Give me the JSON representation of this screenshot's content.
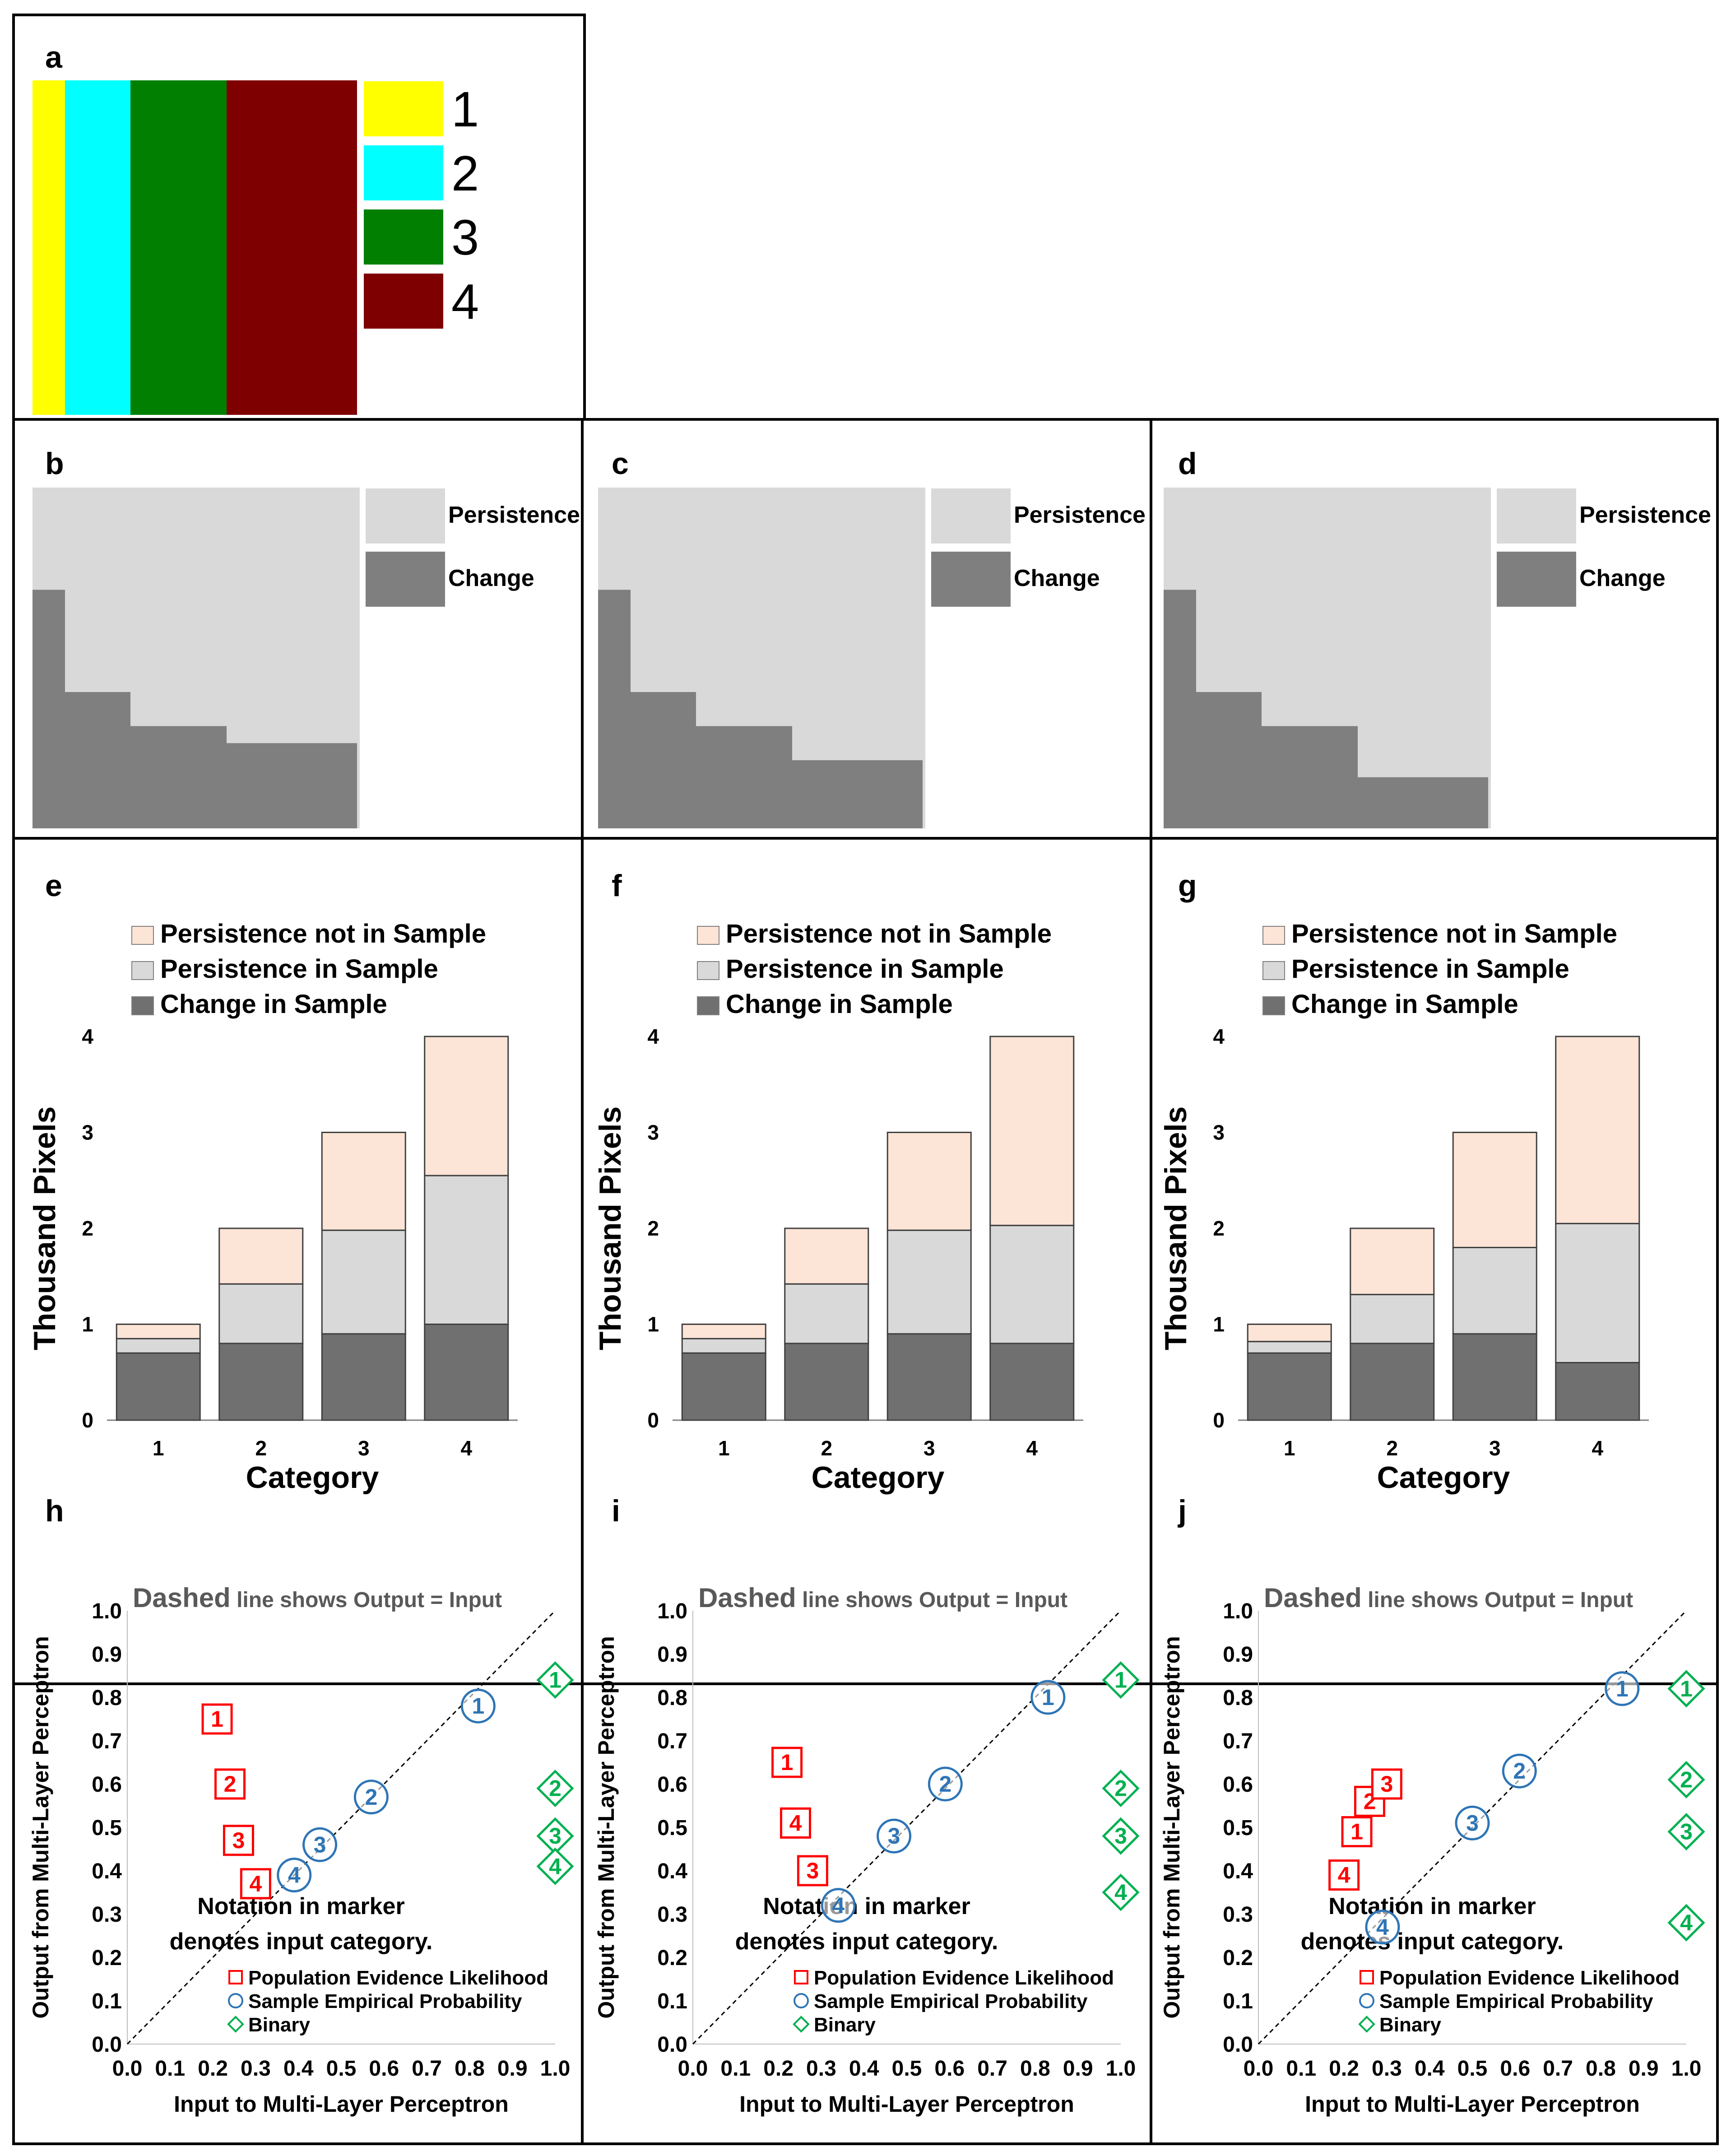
{
  "figure": {
    "panel_letters": [
      "a",
      "b",
      "c",
      "d",
      "e",
      "f",
      "g",
      "h",
      "i",
      "j"
    ]
  },
  "colors": {
    "cat1": "#FFFF00",
    "cat2": "#00FFFF",
    "cat3": "#007F00",
    "cat4": "#7F0000",
    "persistence": "#D9D9D9",
    "change": "#7F7F7F",
    "persistence_not_in_sample": "#FCE4D6",
    "persistence_in_sample": "#D9D9D9",
    "change_in_sample": "#707070",
    "pel": "#FF0000",
    "sep": "#2E75B6",
    "binary": "#00B050"
  },
  "panel_a": {
    "legend": [
      "1",
      "2",
      "3",
      "4"
    ]
  },
  "maps": {
    "legend": {
      "persistence": "Persistence",
      "change": "Change"
    },
    "change_fraction_by_category": [
      [
        0.7,
        0.4,
        0.3,
        0.25
      ],
      [
        0.7,
        0.4,
        0.3,
        0.2
      ],
      [
        0.7,
        0.4,
        0.3,
        0.15
      ]
    ]
  },
  "bars_common": {
    "legend": [
      "Persistence not in Sample",
      "Persistence in Sample",
      "Change in Sample"
    ],
    "ylabel": "Thousand Pixels",
    "xlabel": "Category"
  },
  "scatter_common": {
    "annotation_dashed": "Dashed",
    "annotation_line_shows": "line shows",
    "annotation_output_input": "Output = Input",
    "note_line1": "Notation in marker",
    "note_line2": "denotes input category.",
    "legend": [
      "Population Evidence Likelihood",
      "Sample Empirical Probability",
      "Binary"
    ],
    "xlabel": "Input to Multi-Layer Perceptron",
    "ylabel": "Output from Multi-Layer Perceptron"
  },
  "chart_data": [
    {
      "panel": "e",
      "type": "bar",
      "stacked": true,
      "categories": [
        "1",
        "2",
        "3",
        "4"
      ],
      "series": [
        {
          "name": "Change in Sample",
          "values": [
            0.7,
            0.8,
            0.9,
            1.0
          ]
        },
        {
          "name": "Persistence in Sample",
          "values": [
            0.15,
            0.62,
            1.08,
            1.55
          ]
        },
        {
          "name": "Persistence not in Sample",
          "values": [
            0.15,
            0.58,
            1.02,
            1.45
          ]
        }
      ],
      "ylim": [
        0,
        4
      ],
      "yticks": [
        0,
        1,
        2,
        3,
        4
      ],
      "xlabel": "Category",
      "ylabel": "Thousand Pixels"
    },
    {
      "panel": "f",
      "type": "bar",
      "stacked": true,
      "categories": [
        "1",
        "2",
        "3",
        "4"
      ],
      "series": [
        {
          "name": "Change in Sample",
          "values": [
            0.7,
            0.8,
            0.9,
            0.8
          ]
        },
        {
          "name": "Persistence in Sample",
          "values": [
            0.15,
            0.62,
            1.08,
            1.23
          ]
        },
        {
          "name": "Persistence not in Sample",
          "values": [
            0.15,
            0.58,
            1.02,
            1.97
          ]
        }
      ],
      "ylim": [
        0,
        4
      ],
      "yticks": [
        0,
        1,
        2,
        3,
        4
      ],
      "xlabel": "Category",
      "ylabel": "Thousand Pixels"
    },
    {
      "panel": "g",
      "type": "bar",
      "stacked": true,
      "categories": [
        "1",
        "2",
        "3",
        "4"
      ],
      "series": [
        {
          "name": "Change in Sample",
          "values": [
            0.7,
            0.8,
            0.9,
            0.6
          ]
        },
        {
          "name": "Persistence in Sample",
          "values": [
            0.12,
            0.51,
            0.9,
            1.45
          ]
        },
        {
          "name": "Persistence not in Sample",
          "values": [
            0.18,
            0.69,
            1.2,
            1.95
          ]
        }
      ],
      "ylim": [
        0,
        4
      ],
      "yticks": [
        0,
        1,
        2,
        3,
        4
      ],
      "xlabel": "Category",
      "ylabel": "Thousand Pixels"
    },
    {
      "panel": "h",
      "type": "scatter",
      "xlim": [
        0,
        1
      ],
      "ylim": [
        0,
        1
      ],
      "xticks": [
        "0.0",
        "0.1",
        "0.2",
        "0.3",
        "0.4",
        "0.5",
        "0.6",
        "0.7",
        "0.8",
        "0.9",
        "1.0"
      ],
      "yticks": [
        "0.0",
        "0.1",
        "0.2",
        "0.3",
        "0.4",
        "0.5",
        "0.6",
        "0.7",
        "0.8",
        "0.9",
        "1.0"
      ],
      "series": [
        {
          "name": "Population Evidence Likelihood",
          "marker": "square",
          "points": [
            {
              "label": "1",
              "x": 0.21,
              "y": 0.75
            },
            {
              "label": "2",
              "x": 0.24,
              "y": 0.6
            },
            {
              "label": "3",
              "x": 0.26,
              "y": 0.47
            },
            {
              "label": "4",
              "x": 0.3,
              "y": 0.37
            }
          ]
        },
        {
          "name": "Sample Empirical Probability",
          "marker": "circle",
          "points": [
            {
              "label": "1",
              "x": 0.82,
              "y": 0.78
            },
            {
              "label": "2",
              "x": 0.57,
              "y": 0.57
            },
            {
              "label": "3",
              "x": 0.45,
              "y": 0.46
            },
            {
              "label": "4",
              "x": 0.39,
              "y": 0.39
            }
          ]
        },
        {
          "name": "Binary",
          "marker": "diamond",
          "points": [
            {
              "label": "1",
              "x": 1.0,
              "y": 0.84
            },
            {
              "label": "2",
              "x": 1.0,
              "y": 0.59
            },
            {
              "label": "3",
              "x": 1.0,
              "y": 0.48
            },
            {
              "label": "4",
              "x": 1.0,
              "y": 0.41
            }
          ]
        }
      ],
      "xlabel": "Input to Multi-Layer Perceptron",
      "ylabel": "Output from Multi-Layer Perceptron"
    },
    {
      "panel": "i",
      "type": "scatter",
      "xlim": [
        0,
        1
      ],
      "ylim": [
        0,
        1
      ],
      "xticks": [
        "0.0",
        "0.1",
        "0.2",
        "0.3",
        "0.4",
        "0.5",
        "0.6",
        "0.7",
        "0.8",
        "0.9",
        "1.0"
      ],
      "yticks": [
        "0.0",
        "0.1",
        "0.2",
        "0.3",
        "0.4",
        "0.5",
        "0.6",
        "0.7",
        "0.8",
        "0.9",
        "1.0"
      ],
      "series": [
        {
          "name": "Population Evidence Likelihood",
          "marker": "square",
          "points": [
            {
              "label": "1",
              "x": 0.22,
              "y": 0.65
            },
            {
              "label": "2",
              "x": 0.24,
              "y": 0.51
            },
            {
              "label": "4",
              "x": 0.24,
              "y": 0.51
            },
            {
              "label": "3",
              "x": 0.28,
              "y": 0.4
            }
          ]
        },
        {
          "name": "Sample Empirical Probability",
          "marker": "circle",
          "points": [
            {
              "label": "1",
              "x": 0.83,
              "y": 0.8
            },
            {
              "label": "2",
              "x": 0.59,
              "y": 0.6
            },
            {
              "label": "3",
              "x": 0.47,
              "y": 0.48
            },
            {
              "label": "4",
              "x": 0.34,
              "y": 0.32
            }
          ]
        },
        {
          "name": "Binary",
          "marker": "diamond",
          "points": [
            {
              "label": "1",
              "x": 1.0,
              "y": 0.84
            },
            {
              "label": "2",
              "x": 1.0,
              "y": 0.59
            },
            {
              "label": "3",
              "x": 1.0,
              "y": 0.48
            },
            {
              "label": "4",
              "x": 1.0,
              "y": 0.35
            }
          ]
        }
      ],
      "xlabel": "Input to Multi-Layer Perceptron",
      "ylabel": "Output from Multi-Layer Perceptron"
    },
    {
      "panel": "j",
      "type": "scatter",
      "xlim": [
        0,
        1
      ],
      "ylim": [
        0,
        1
      ],
      "xticks": [
        "0.0",
        "0.1",
        "0.2",
        "0.3",
        "0.4",
        "0.5",
        "0.6",
        "0.7",
        "0.8",
        "0.9",
        "1.0"
      ],
      "yticks": [
        "0.0",
        "0.1",
        "0.2",
        "0.3",
        "0.4",
        "0.5",
        "0.6",
        "0.7",
        "0.8",
        "0.9",
        "1.0"
      ],
      "series": [
        {
          "name": "Population Evidence Likelihood",
          "marker": "square",
          "points": [
            {
              "label": "4",
              "x": 0.2,
              "y": 0.39
            },
            {
              "label": "1",
              "x": 0.23,
              "y": 0.49
            },
            {
              "label": "2",
              "x": 0.26,
              "y": 0.56
            },
            {
              "label": "3",
              "x": 0.3,
              "y": 0.6
            }
          ]
        },
        {
          "name": "Sample Empirical Probability",
          "marker": "circle",
          "points": [
            {
              "label": "1",
              "x": 0.85,
              "y": 0.82
            },
            {
              "label": "2",
              "x": 0.61,
              "y": 0.63
            },
            {
              "label": "3",
              "x": 0.5,
              "y": 0.51
            },
            {
              "label": "4",
              "x": 0.29,
              "y": 0.27
            }
          ]
        },
        {
          "name": "Binary",
          "marker": "diamond",
          "points": [
            {
              "label": "1",
              "x": 1.0,
              "y": 0.82
            },
            {
              "label": "2",
              "x": 1.0,
              "y": 0.61
            },
            {
              "label": "3",
              "x": 1.0,
              "y": 0.49
            },
            {
              "label": "4",
              "x": 1.0,
              "y": 0.28
            }
          ]
        }
      ],
      "xlabel": "Input to Multi-Layer Perceptron",
      "ylabel": "Output from Multi-Layer Perceptron"
    }
  ]
}
